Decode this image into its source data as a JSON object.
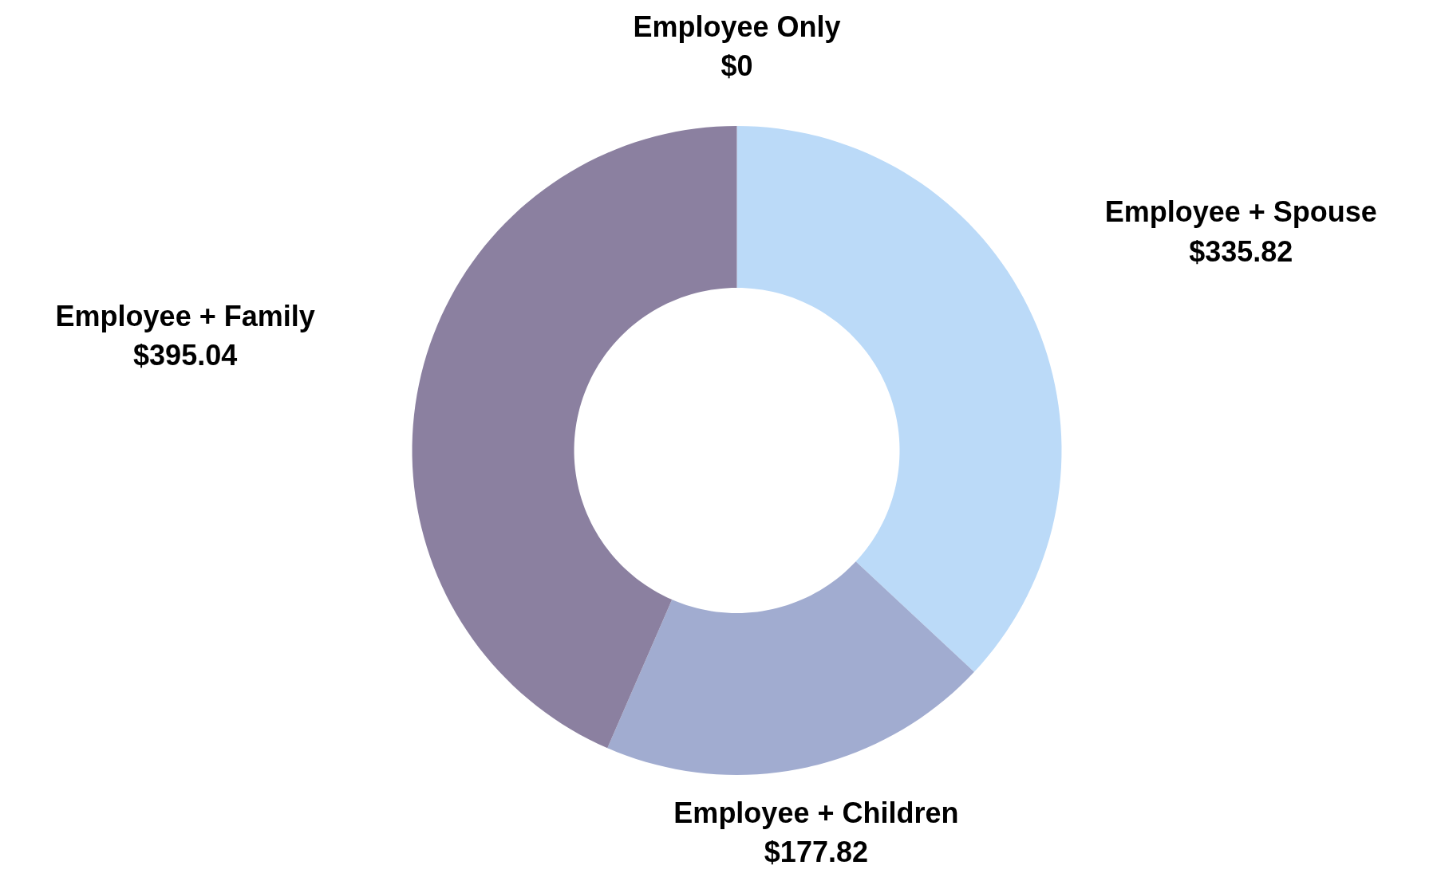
{
  "chart_data": {
    "type": "donut",
    "categories": [
      "Employee Only",
      "Employee + Spouse",
      "Employee + Children",
      "Employee + Family"
    ],
    "values": [
      0,
      335.82,
      177.82,
      395.04
    ],
    "colors": [
      "#4472c4",
      "#bbdaf8",
      "#a1acd0",
      "#8b80a0"
    ],
    "value_labels": [
      "$0",
      "$335.82",
      "$177.82",
      "$395.04"
    ],
    "legend": false
  }
}
